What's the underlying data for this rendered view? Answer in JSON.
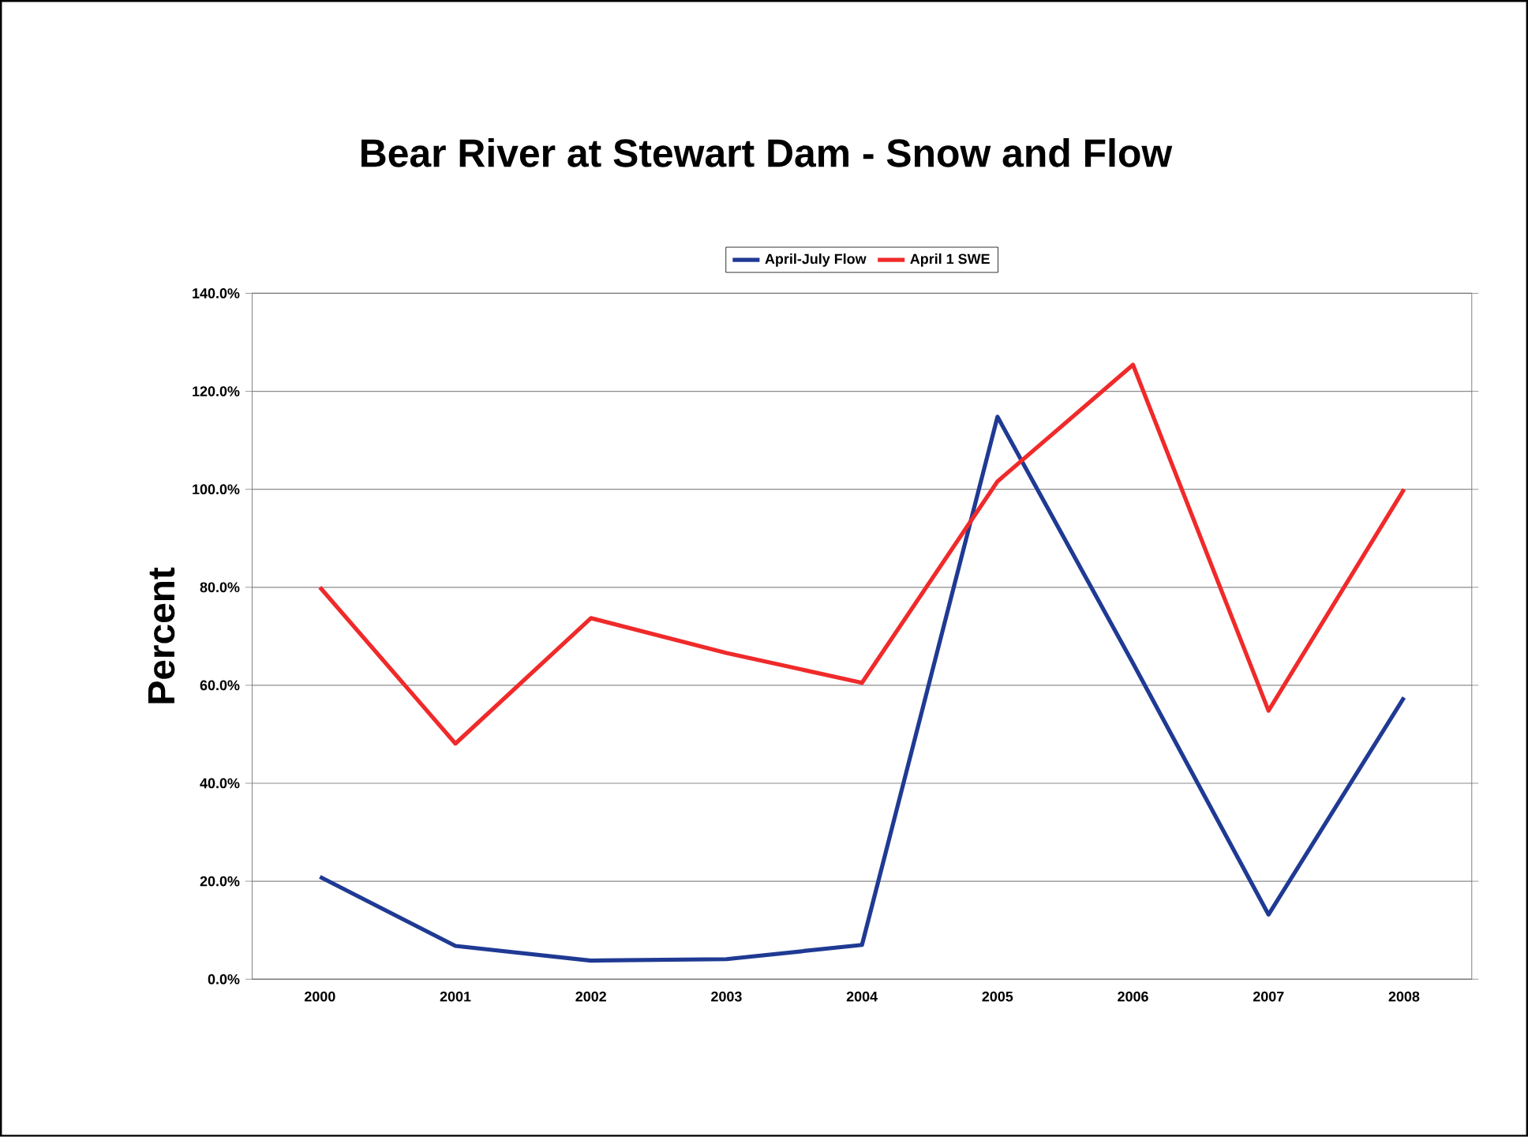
{
  "chart_data": {
    "type": "line",
    "title": "Bear River at Stewart Dam - Snow and Flow",
    "ylabel": "Percent",
    "categories": [
      "2000",
      "2001",
      "2002",
      "2003",
      "2004",
      "2005",
      "2006",
      "2007",
      "2008"
    ],
    "series": [
      {
        "name": "April-July Flow",
        "color": "#1f3a93",
        "values": [
          20.9,
          6.8,
          3.8,
          4.1,
          7.0,
          114.8,
          64.5,
          13.2,
          57.5
        ]
      },
      {
        "name": "April 1 SWE",
        "color": "#f02a2a",
        "values": [
          80.0,
          48.1,
          73.7,
          66.6,
          60.5,
          101.6,
          125.4,
          54.8,
          100.0
        ]
      }
    ],
    "ylim": [
      0,
      140
    ],
    "yticks": [
      {
        "value": 0,
        "label": "0.0%"
      },
      {
        "value": 20,
        "label": "20.0%"
      },
      {
        "value": 40,
        "label": "40.0%"
      },
      {
        "value": 60,
        "label": "60.0%"
      },
      {
        "value": 80,
        "label": "80.0%"
      },
      {
        "value": 100,
        "label": "100.0%"
      },
      {
        "value": 120,
        "label": "120.0%"
      },
      {
        "value": 140,
        "label": "140.0%"
      }
    ],
    "grid": "y",
    "legend": "top",
    "marker": "none",
    "line_style": "solid"
  }
}
